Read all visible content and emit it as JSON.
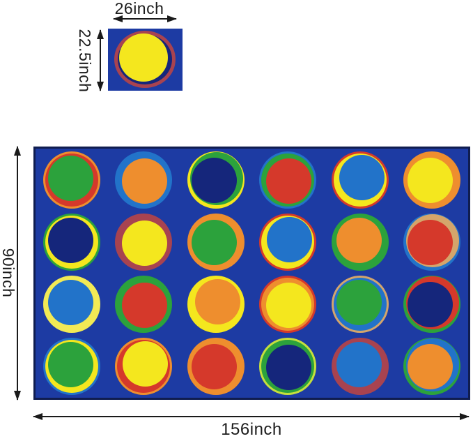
{
  "labels": {
    "swatch_width": "26inch",
    "swatch_height": "22.5inch",
    "rug_width": "156inch",
    "rug_height": "90inch"
  },
  "colors": {
    "rug_blue": "#1d3ba3",
    "rug_border": "#101d4f",
    "navy": "#15267b",
    "yellow": "#f4e71e",
    "green": "#2ca23c",
    "red": "#d5392b",
    "orange": "#ee8e2e",
    "blue": "#2273c9",
    "maroon": "#a84350",
    "tan": "#d4a56b",
    "pale_yellow": "#f2ea55",
    "yellow_green": "#c6df3d"
  },
  "swatch": {
    "background": "rug_blue",
    "ring": "maroon",
    "shadow": "navy",
    "fill": "yellow"
  },
  "rug": {
    "background": "rug_blue",
    "border_color": "rug_border",
    "rows": 4,
    "cols": 6,
    "circles": [
      {
        "outer": "orange",
        "ring": "red",
        "fill": "green"
      },
      {
        "outer": "blue",
        "ring": "blue",
        "fill": "orange"
      },
      {
        "outer": "yellow",
        "ring": "green",
        "fill": "navy"
      },
      {
        "outer": "blue",
        "ring": "green",
        "fill": "red"
      },
      {
        "outer": "red",
        "ring": "yellow",
        "fill": "blue"
      },
      {
        "outer": "orange",
        "ring": "orange",
        "fill": "yellow"
      },
      {
        "outer": "green",
        "ring": "yellow",
        "fill": "navy"
      },
      {
        "outer": "maroon",
        "ring": "maroon",
        "fill": "yellow"
      },
      {
        "outer": "orange",
        "ring": "orange",
        "fill": "green"
      },
      {
        "outer": "red",
        "ring": "yellow",
        "fill": "blue"
      },
      {
        "outer": "green",
        "ring": "green",
        "fill": "orange"
      },
      {
        "outer": "blue",
        "ring": "tan",
        "fill": "red"
      },
      {
        "outer": "pale_yellow",
        "ring": "pale_yellow",
        "fill": "blue"
      },
      {
        "outer": "green",
        "ring": "green",
        "fill": "red"
      },
      {
        "outer": "yellow",
        "ring": "yellow",
        "fill": "orange"
      },
      {
        "outer": "red",
        "ring": "orange",
        "fill": "yellow"
      },
      {
        "outer": "tan",
        "ring": "blue",
        "fill": "green"
      },
      {
        "outer": "green",
        "ring": "red",
        "fill": "navy"
      },
      {
        "outer": "blue",
        "ring": "yellow",
        "fill": "green"
      },
      {
        "outer": "orange",
        "ring": "red",
        "fill": "yellow"
      },
      {
        "outer": "orange",
        "ring": "orange",
        "fill": "red"
      },
      {
        "outer": "yellow_green",
        "ring": "green",
        "fill": "navy"
      },
      {
        "outer": "maroon",
        "ring": "maroon",
        "fill": "blue"
      },
      {
        "outer": "green",
        "ring": "blue",
        "fill": "orange"
      }
    ]
  }
}
